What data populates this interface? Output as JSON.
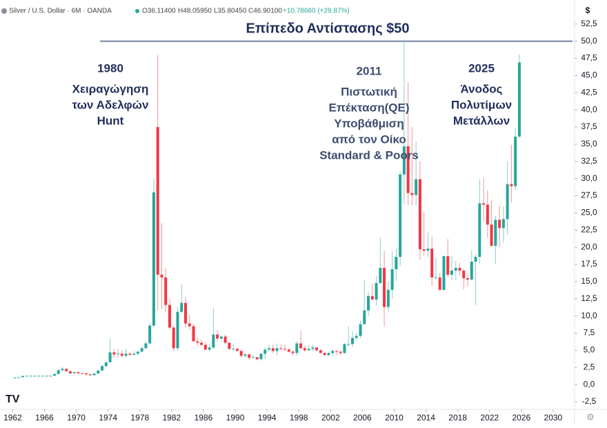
{
  "chart_data": {
    "type": "candlestick",
    "header": {
      "symbol": "Silver / U.S. Dollar · 6M · OANDA",
      "open": "O36.11400",
      "high": "H48.05950",
      "low": "L35.80450",
      "close": "C46.90100",
      "change": "+10.78660 (+29.87%)"
    },
    "currency": "$",
    "up_color": "#26a69a",
    "down_color": "#f23645",
    "resistance": {
      "label": "Επίπεδο Αντίστασης $50",
      "value": 50,
      "color": "#8d9bb0"
    },
    "annotations": [
      {
        "lines": [
          "1980",
          "Χειραγώγηση",
          "των Αδελφών",
          "Hunt"
        ]
      },
      {
        "lines": [
          "2011",
          "Πιστωτική",
          "Επέκταση(QE)",
          "Υποβάθμιση",
          "από τον Οίκο",
          "Standard & Poors"
        ]
      },
      {
        "lines": [
          "2025",
          "Άνοδος",
          "Πολυτίμων",
          "Μετάλλων"
        ]
      }
    ],
    "xlim": [
      1960.4,
      2032.7
    ],
    "xticks": [
      1962,
      1966,
      1970,
      1974,
      1978,
      1982,
      1986,
      1990,
      1994,
      1998,
      2002,
      2006,
      2010,
      2014,
      2018,
      2022,
      2026,
      2030
    ],
    "ylim": [
      -3.5,
      56
    ],
    "yticks": [
      {
        "value": -2.5,
        "label": "-2,5"
      },
      {
        "value": 0,
        "label": "0,0"
      },
      {
        "value": 2.5,
        "label": "2,5"
      },
      {
        "value": 5,
        "label": "5,0"
      },
      {
        "value": 7.5,
        "label": "7,5"
      },
      {
        "value": 10,
        "label": "10,0"
      },
      {
        "value": 12.5,
        "label": "12,5"
      },
      {
        "value": 15,
        "label": "15,0"
      },
      {
        "value": 17.5,
        "label": "17,5"
      },
      {
        "value": 20,
        "label": "20,0"
      },
      {
        "value": 22.5,
        "label": "22,5"
      },
      {
        "value": 25,
        "label": "25,0"
      },
      {
        "value": 27.5,
        "label": "27,5"
      },
      {
        "value": 30,
        "label": "30,0"
      },
      {
        "value": 32.5,
        "label": "32,5"
      },
      {
        "value": 35,
        "label": "35,0"
      },
      {
        "value": 37.5,
        "label": "37,5"
      },
      {
        "value": 40,
        "label": "40,0"
      },
      {
        "value": 42.5,
        "label": "42,5"
      },
      {
        "value": 45,
        "label": "45,0"
      },
      {
        "value": 47.5,
        "label": "47,5"
      },
      {
        "value": 50,
        "label": "50,0"
      },
      {
        "value": 52.5,
        "label": "52,5"
      }
    ],
    "x": [
      1962,
      1962.5,
      1963,
      1963.5,
      1964,
      1964.5,
      1965,
      1965.5,
      1966,
      1966.5,
      1967,
      1967.5,
      1968,
      1968.5,
      1969,
      1969.5,
      1970,
      1970.5,
      1971,
      1971.5,
      1972,
      1972.5,
      1973,
      1973.5,
      1974,
      1974.5,
      1975,
      1975.5,
      1976,
      1976.5,
      1977,
      1977.5,
      1978,
      1978.5,
      1979,
      1979.5,
      1980,
      1980.5,
      1981,
      1981.5,
      1982,
      1982.5,
      1983,
      1983.5,
      1984,
      1984.5,
      1985,
      1985.5,
      1986,
      1986.5,
      1987,
      1987.5,
      1988,
      1988.5,
      1989,
      1989.5,
      1990,
      1990.5,
      1991,
      1991.5,
      1992,
      1992.5,
      1993,
      1993.5,
      1994,
      1994.5,
      1995,
      1995.5,
      1996,
      1996.5,
      1997,
      1997.5,
      1998,
      1998.5,
      1999,
      1999.5,
      2000,
      2000.5,
      2001,
      2001.5,
      2002,
      2002.5,
      2003,
      2003.5,
      2004,
      2004.5,
      2005,
      2005.5,
      2006,
      2006.5,
      2007,
      2007.5,
      2008,
      2008.5,
      2009,
      2009.5,
      2010,
      2010.5,
      2011,
      2011.5,
      2012,
      2012.5,
      2013,
      2013.5,
      2014,
      2014.5,
      2015,
      2015.5,
      2016,
      2016.5,
      2017,
      2017.5,
      2018,
      2018.5,
      2019,
      2019.5,
      2020,
      2020.5,
      2021,
      2021.5,
      2022,
      2022.5,
      2023,
      2023.5,
      2024,
      2024.5,
      2025,
      2025.5
    ],
    "open": [
      1.0,
      1.02,
      1.08,
      1.27,
      1.29,
      1.29,
      1.29,
      1.29,
      1.29,
      1.29,
      1.29,
      1.55,
      2.1,
      2.3,
      1.95,
      1.65,
      1.8,
      1.65,
      1.64,
      1.5,
      1.37,
      1.6,
      2.05,
      2.7,
      3.25,
      4.7,
      4.4,
      4.5,
      4.2,
      4.5,
      4.35,
      4.5,
      4.8,
      5.3,
      6.0,
      8.6,
      37.5,
      16,
      15.6,
      11.6,
      8.3,
      5.3,
      10.6,
      11.9,
      8.9,
      8.5,
      6.3,
      6.1,
      5.8,
      5.1,
      5.4,
      7.3,
      6.7,
      7.0,
      6.1,
      5.2,
      5.2,
      4.9,
      4.2,
      4.4,
      3.9,
      4.0,
      3.7,
      4.5,
      5.1,
      5.3,
      4.9,
      5.3,
      5.2,
      5.1,
      4.8,
      4.6,
      6.0,
      5.3,
      5.0,
      5.2,
      5.4,
      5.0,
      4.6,
      4.3,
      4.6,
      4.9,
      4.8,
      4.6,
      5.9,
      5.9,
      6.8,
      7.1,
      8.8,
      10.8,
      12.9,
      12.4,
      14.8,
      17.0,
      11.3,
      13.8,
      16.8,
      18.6,
      30.6,
      34.7,
      27.9,
      27.6,
      29.9,
      19.7,
      19.5,
      19.8,
      15.6,
      15.6,
      13.8,
      18.7,
      16.0,
      16.6,
      17.0,
      16.6,
      15.5,
      15.3,
      17.9,
      18.6,
      26.4,
      26.2,
      23.3,
      20.2,
      24.0,
      22.8,
      24.1,
      29.2,
      28.9,
      36.114
    ],
    "high": [
      1.05,
      1.1,
      1.28,
      1.3,
      1.3,
      1.3,
      1.3,
      1.3,
      1.3,
      1.3,
      1.6,
      2.2,
      2.6,
      2.4,
      2.0,
      1.9,
      1.95,
      1.8,
      1.75,
      1.55,
      1.7,
      2.1,
      2.9,
      3.3,
      6.7,
      5.2,
      5.2,
      5.0,
      5.2,
      4.7,
      4.9,
      4.9,
      5.6,
      6.3,
      9.0,
      30,
      48,
      23.5,
      17,
      12.5,
      8.6,
      11.3,
      14.7,
      12.8,
      10.2,
      8.9,
      6.9,
      6.6,
      6.2,
      5.9,
      11.2,
      8.0,
      7.2,
      7.3,
      6.2,
      5.9,
      5.4,
      5.1,
      4.5,
      4.5,
      4.3,
      4.0,
      4.6,
      5.4,
      5.8,
      5.8,
      6.0,
      5.8,
      5.8,
      5.3,
      5.0,
      6.3,
      7.8,
      5.7,
      5.8,
      5.8,
      5.5,
      5.2,
      4.8,
      4.8,
      5.1,
      5.0,
      4.9,
      6.0,
      8.5,
      7.8,
      7.6,
      9.3,
      15.2,
      13.5,
      14.7,
      15.8,
      21.4,
      19.5,
      15.0,
      19.4,
      19.8,
      31,
      49.8,
      44,
      37.5,
      35.4,
      32.5,
      25.1,
      22.2,
      21.6,
      18.5,
      16.3,
      18.8,
      21.2,
      18.7,
      18.0,
      17.7,
      16.9,
      16.2,
      19.6,
      19.0,
      29.9,
      30.1,
      28.3,
      26.9,
      24.6,
      26.1,
      25.9,
      32.5,
      34.9,
      37.3,
      48.0595
    ],
    "low": [
      0.95,
      1.0,
      1.05,
      1.25,
      1.28,
      1.28,
      1.28,
      1.28,
      1.28,
      1.28,
      1.29,
      1.5,
      1.9,
      1.9,
      1.5,
      1.6,
      1.55,
      1.6,
      1.3,
      1.3,
      1.35,
      1.6,
      2.0,
      2.5,
      3.25,
      3.9,
      3.9,
      4.0,
      3.9,
      4.2,
      4.3,
      4.3,
      4.7,
      5.2,
      5.9,
      8.4,
      10.8,
      11,
      10.5,
      8,
      4.9,
      5.0,
      10.4,
      8.3,
      8.0,
      6.3,
      5.6,
      5.6,
      5.0,
      4.8,
      5.3,
      6.3,
      6.2,
      5.9,
      5.0,
      5.0,
      4.9,
      3.9,
      3.9,
      3.6,
      3.9,
      3.6,
      3.5,
      3.7,
      4.9,
      4.6,
      4.3,
      5.0,
      4.9,
      4.7,
      4.2,
      4.2,
      5.2,
      4.7,
      4.9,
      4.9,
      4.8,
      4.6,
      4.2,
      4.1,
      4.2,
      4.3,
      4.3,
      4.5,
      5.5,
      5.5,
      6.4,
      6.8,
      8.8,
      10.0,
      12.3,
      11.5,
      14.6,
      8.5,
      10.5,
      12.5,
      15.1,
      17.3,
      26.3,
      26.1,
      26.1,
      26.1,
      18.2,
      18.8,
      18.6,
      14.4,
      15.3,
      13.6,
      13.7,
      15.6,
      15.2,
      15.2,
      15.9,
      13.9,
      14.3,
      15.2,
      11.6,
      17.6,
      23.8,
      21.4,
      20.1,
      17.6,
      20.0,
      20.7,
      21.9,
      26.5,
      28.3,
      35.8045
    ],
    "close": [
      1.02,
      1.08,
      1.27,
      1.29,
      1.29,
      1.29,
      1.29,
      1.29,
      1.29,
      1.29,
      1.55,
      2.1,
      2.3,
      1.95,
      1.65,
      1.8,
      1.65,
      1.64,
      1.5,
      1.37,
      1.6,
      2.05,
      2.7,
      3.25,
      4.7,
      4.4,
      4.5,
      4.2,
      4.5,
      4.35,
      4.5,
      4.8,
      5.3,
      6.0,
      8.6,
      28,
      16,
      15.6,
      11.6,
      8.3,
      5.3,
      10.6,
      11.9,
      8.9,
      8.5,
      6.3,
      6.1,
      5.8,
      5.1,
      5.4,
      7.3,
      6.7,
      7.0,
      6.1,
      5.2,
      5.2,
      4.9,
      4.2,
      4.4,
      3.9,
      4.0,
      3.7,
      4.5,
      5.1,
      5.3,
      4.9,
      5.3,
      5.2,
      5.1,
      4.8,
      4.6,
      6.0,
      5.3,
      5.0,
      5.2,
      5.4,
      5.0,
      4.6,
      4.3,
      4.6,
      4.9,
      4.8,
      4.6,
      5.9,
      5.9,
      6.8,
      7.1,
      8.8,
      10.8,
      12.9,
      12.4,
      14.8,
      17.0,
      11.3,
      13.8,
      16.8,
      18.6,
      30.6,
      34.7,
      27.9,
      27.6,
      29.9,
      19.7,
      19.5,
      19.8,
      15.6,
      15.6,
      13.8,
      18.7,
      16.0,
      16.6,
      17.0,
      16.6,
      15.5,
      15.3,
      17.9,
      18.6,
      26.4,
      26.2,
      23.3,
      20.2,
      24.0,
      22.8,
      24.1,
      29.2,
      28.9,
      36.1,
      46.901
    ]
  }
}
